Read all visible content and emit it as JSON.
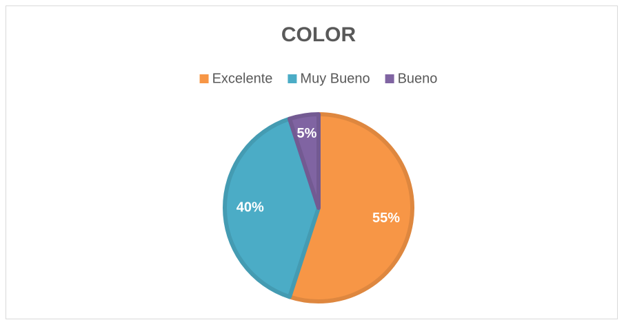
{
  "chart_data": {
    "type": "pie",
    "title": "COLOR",
    "categories": [
      "Excelente",
      "Muy Bueno",
      "Bueno"
    ],
    "values": [
      55,
      40,
      5
    ],
    "value_labels": [
      "55%",
      "40%",
      "5%"
    ],
    "colors": [
      "#f79646",
      "#4bacc6",
      "#8064a2"
    ],
    "legend": "top"
  }
}
